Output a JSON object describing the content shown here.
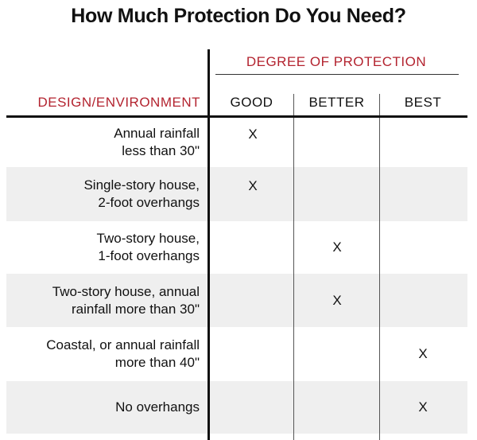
{
  "title": "How Much Protection Do You Need?",
  "group_header": "DEGREE OF PROTECTION",
  "columns": [
    "DESIGN/ENVIRONMENT",
    "GOOD",
    "BETTER",
    "BEST"
  ],
  "accent_color": "#b3232f",
  "rows": [
    {
      "lines": [
        "Annual rainfall",
        "less than 30\""
      ],
      "good": "X",
      "better": "",
      "best": ""
    },
    {
      "lines": [
        "Single-story house,",
        "2-foot overhangs"
      ],
      "good": "X",
      "better": "",
      "best": ""
    },
    {
      "lines": [
        "Two-story house,",
        "1-foot overhangs"
      ],
      "good": "",
      "better": "X",
      "best": ""
    },
    {
      "lines": [
        "Two-story house, annual",
        "rainfall more than 30\""
      ],
      "good": "",
      "better": "X",
      "best": ""
    },
    {
      "lines": [
        "Coastal, or annual rainfall",
        "more than 40\""
      ],
      "good": "",
      "better": "",
      "best": "X"
    },
    {
      "lines": [
        "No overhangs"
      ],
      "good": "",
      "better": "",
      "best": "X"
    }
  ]
}
